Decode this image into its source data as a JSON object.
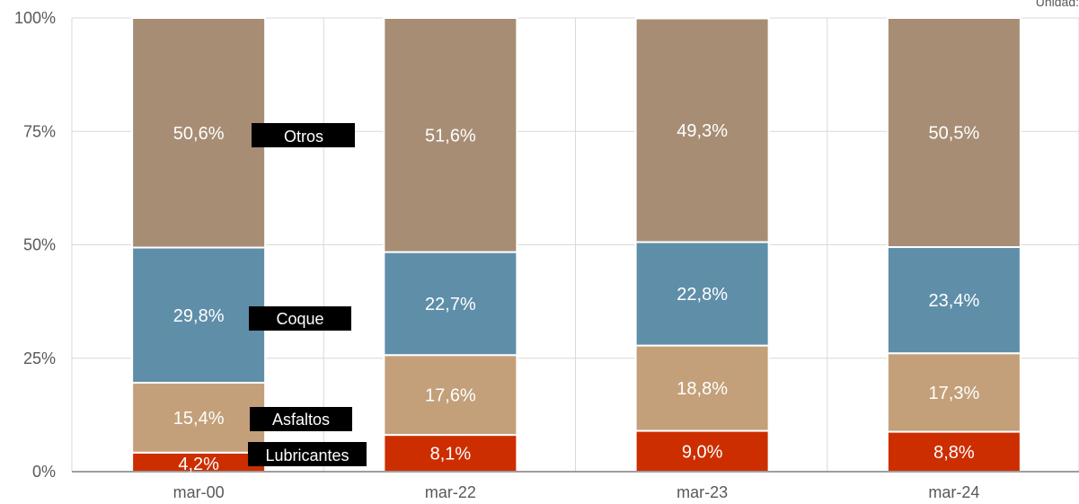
{
  "unit_label": "Unidad:",
  "chart_data": {
    "type": "bar",
    "stacked": true,
    "categories": [
      "mar-00",
      "mar-22",
      "mar-23",
      "mar-24"
    ],
    "series": [
      {
        "name": "Lubricantes",
        "values": [
          4.2,
          8.1,
          9.0,
          8.8
        ],
        "labels": [
          "4,2%",
          "8,1%",
          "9,0%",
          "8,8%"
        ],
        "color": "#cc2e00"
      },
      {
        "name": "Asfaltos",
        "values": [
          15.4,
          17.6,
          18.8,
          17.3
        ],
        "labels": [
          "15,4%",
          "17,6%",
          "18,8%",
          "17,3%"
        ],
        "color": "#c3a07a"
      },
      {
        "name": "Coque",
        "values": [
          29.8,
          22.7,
          22.8,
          23.4
        ],
        "labels": [
          "29,8%",
          "22,7%",
          "22,8%",
          "23,4%"
        ],
        "color": "#5f8ea9"
      },
      {
        "name": "Otros",
        "values": [
          50.6,
          51.6,
          49.3,
          50.5
        ],
        "labels": [
          "50,6%",
          "51,6%",
          "49,3%",
          "50,5%"
        ],
        "color": "#a68d74"
      }
    ],
    "ylim": [
      0,
      100
    ],
    "yticks": [
      "0%",
      "25%",
      "50%",
      "75%",
      "100%"
    ],
    "grid": true,
    "legend": "inline-labels-on-first-bar",
    "xlabel": "",
    "ylabel": ""
  }
}
